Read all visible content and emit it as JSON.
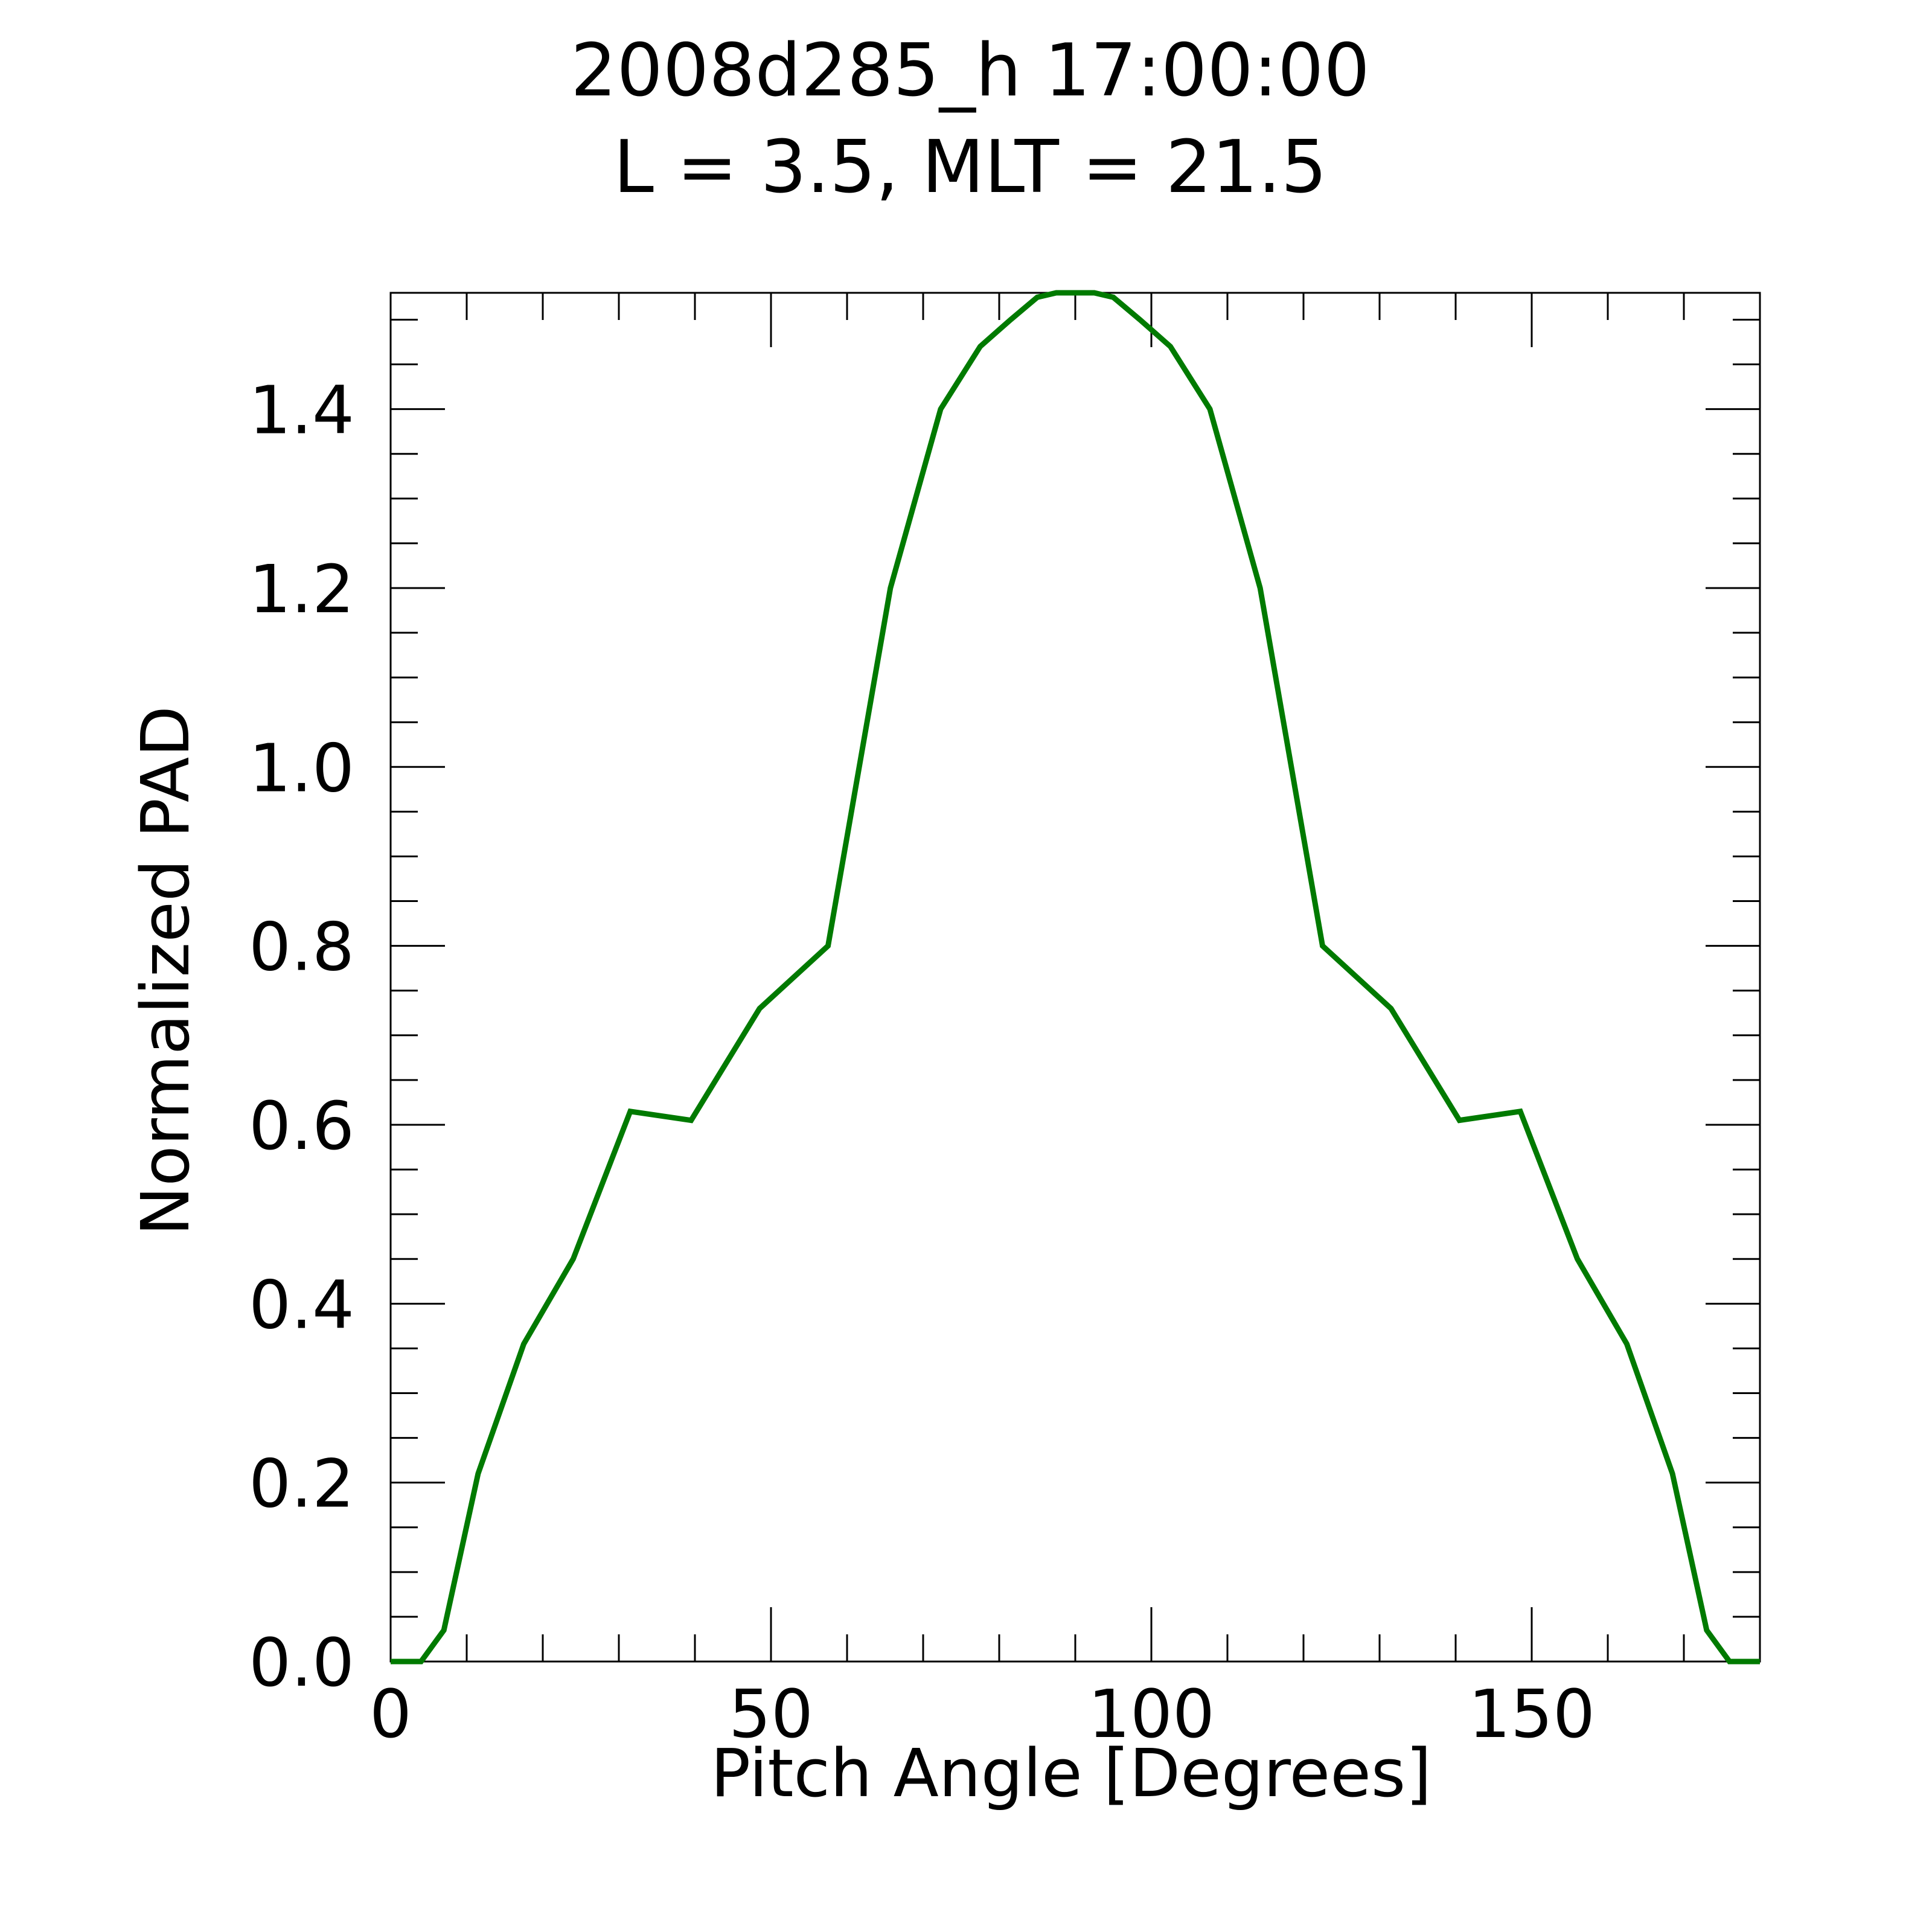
{
  "chart_data": {
    "type": "line",
    "title": "2008d285_h  17:00:00",
    "subtitle": "L = 3.5, MLT = 21.5",
    "xlabel": "Pitch Angle [Degrees]",
    "ylabel": "Normalized PAD",
    "xlim": [
      0,
      180
    ],
    "ylim": [
      0,
      1.53
    ],
    "x_ticks": [
      0,
      50,
      100,
      150
    ],
    "x_tick_labels": [
      "0",
      "50",
      "100",
      "150"
    ],
    "y_ticks": [
      0,
      0.2,
      0.4,
      0.6,
      0.8,
      1.0,
      1.2,
      1.4
    ],
    "y_tick_labels": [
      "0.0",
      "0.2",
      "0.4",
      "0.6",
      "0.8",
      "1.0",
      "1.2",
      "1.4"
    ],
    "x_minor_step": 10,
    "y_minor_step": 0.05,
    "grid": false,
    "series_color": "#007a00",
    "series": [
      {
        "x": [
          0,
          4,
          7,
          11.5,
          17.5,
          24,
          31.5,
          39.5,
          48.5,
          57.5,
          65.7,
          72.3,
          77.5,
          81.5,
          85,
          87.5,
          90,
          92.5,
          95,
          98.5,
          102.5,
          107.7,
          114.3,
          122.5,
          131.5,
          140.5,
          148.5,
          156,
          162.5,
          168.5,
          173,
          176,
          180
        ],
        "y": [
          0,
          0,
          0.035,
          0.21,
          0.355,
          0.45,
          0.615,
          0.605,
          0.73,
          0.8,
          1.2,
          1.4,
          1.47,
          1.5,
          1.525,
          1.53,
          1.53,
          1.53,
          1.525,
          1.5,
          1.47,
          1.4,
          1.2,
          0.8,
          0.73,
          0.605,
          0.615,
          0.45,
          0.355,
          0.21,
          0.035,
          0,
          0
        ]
      }
    ]
  }
}
